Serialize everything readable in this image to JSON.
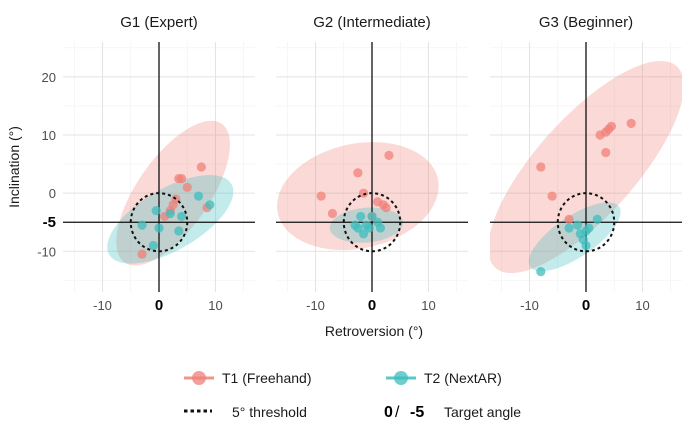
{
  "chart_data": {
    "type": "scatter",
    "xlabel": "Retroversion (°)",
    "ylabel": "Inclination (°)",
    "xlim": [
      -17,
      17
    ],
    "ylim": [
      -17,
      26
    ],
    "xticks": [
      -10,
      0,
      10
    ],
    "yticks": [
      -10,
      0,
      10,
      20
    ],
    "x_tick_labels": [
      "-10",
      "0",
      "10"
    ],
    "y_tick_labels": [
      "-10",
      "0",
      "10",
      "20"
    ],
    "target_labels": {
      "x": "0",
      "y": "-5"
    },
    "target": {
      "x": 0,
      "y": -5
    },
    "threshold_radius": 5,
    "colors": {
      "T1": "#F08078",
      "T2": "#3DBDBE"
    },
    "legend": {
      "t1": "T1 (Freehand)",
      "t2": "T2 (NextAR)",
      "threshold": "5° threshold",
      "target_zero": "0",
      "target_sep": " / ",
      "target_five": "-5",
      "target_label": "Target angle"
    },
    "panels": [
      {
        "title": "G1 (Expert)",
        "series": [
          {
            "name": "T1",
            "points": [
              [
                -3,
                -10.5
              ],
              [
                1,
                -4
              ],
              [
                2,
                -3
              ],
              [
                2.5,
                -2
              ],
              [
                3,
                -1
              ],
              [
                3.5,
                2.5
              ],
              [
                4,
                2.5
              ],
              [
                5,
                1
              ],
              [
                7.5,
                4.5
              ],
              [
                8.5,
                -2.5
              ]
            ]
          },
          {
            "name": "T2",
            "points": [
              [
                -3,
                -5.5
              ],
              [
                -1,
                -9
              ],
              [
                -0.5,
                -3
              ],
              [
                0,
                -6
              ],
              [
                2,
                -3.5
              ],
              [
                3.5,
                -6.5
              ],
              [
                4,
                -4
              ],
              [
                7,
                -0.5
              ],
              [
                9,
                -2
              ]
            ]
          }
        ],
        "ellipses": [
          {
            "series": "T1",
            "cx": 2.5,
            "cy": 0,
            "rx": 15,
            "ry": 6.2,
            "angle": 55
          },
          {
            "series": "T2",
            "cx": 2,
            "cy": -4.5,
            "rx": 12.5,
            "ry": 5.3,
            "angle": 30
          }
        ]
      },
      {
        "title": "G2 (Intermediate)",
        "series": [
          {
            "name": "T1",
            "points": [
              [
                -9,
                -0.5
              ],
              [
                -7,
                -3.5
              ],
              [
                -2.5,
                3.5
              ],
              [
                -1.5,
                0
              ],
              [
                0,
                -4
              ],
              [
                1,
                -1.5
              ],
              [
                2,
                -2
              ],
              [
                2.5,
                -2.5
              ],
              [
                3,
                6.5
              ]
            ]
          },
          {
            "name": "T2",
            "points": [
              [
                -3,
                -5.5
              ],
              [
                -2.5,
                -6
              ],
              [
                -2,
                -4
              ],
              [
                -1.5,
                -7
              ],
              [
                -1,
                -5.5
              ],
              [
                -0.5,
                -6
              ],
              [
                0,
                -4
              ],
              [
                1,
                -5
              ],
              [
                1.5,
                -6
              ]
            ]
          }
        ],
        "ellipses": [
          {
            "series": "T1",
            "cx": -2.5,
            "cy": -0.5,
            "rx": 14.5,
            "ry": 9,
            "angle": 12
          },
          {
            "series": "T2",
            "cx": -1,
            "cy": -5.5,
            "rx": 6.5,
            "ry": 3,
            "angle": 5
          }
        ]
      },
      {
        "title": "G3 (Beginner)",
        "series": [
          {
            "name": "T1",
            "points": [
              [
                -8,
                4.5
              ],
              [
                -6,
                -0.5
              ],
              [
                -3,
                -4.5
              ],
              [
                2.5,
                10
              ],
              [
                3.5,
                7
              ],
              [
                3.5,
                10.5
              ],
              [
                4,
                11
              ],
              [
                4.5,
                11.5
              ],
              [
                8,
                12
              ]
            ]
          },
          {
            "name": "T2",
            "points": [
              [
                -8,
                -13.5
              ],
              [
                -3,
                -6
              ],
              [
                -1.5,
                -5.5
              ],
              [
                -1,
                -7
              ],
              [
                -0.5,
                -8
              ],
              [
                0,
                -9
              ],
              [
                0,
                -6.5
              ],
              [
                0.5,
                -6
              ],
              [
                2,
                -4.5
              ]
            ]
          }
        ],
        "ellipses": [
          {
            "series": "T1",
            "cx": 0,
            "cy": 4.5,
            "rx": 24,
            "ry": 8.5,
            "angle": 48
          },
          {
            "series": "T2",
            "cx": -2,
            "cy": -7.5,
            "rx": 9.5,
            "ry": 3.5,
            "angle": 34
          }
        ]
      }
    ]
  }
}
